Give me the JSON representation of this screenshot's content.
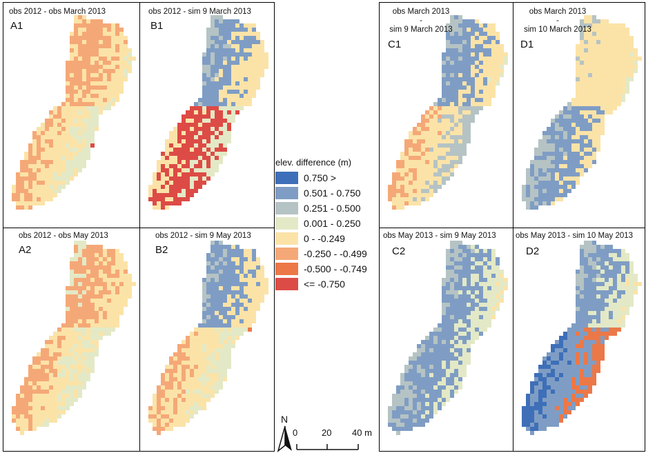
{
  "legend": {
    "title": "elev. difference (m)",
    "classes": [
      {
        "label": "0.750 >",
        "color": "#3e6fb8"
      },
      {
        "label": "0.501 - 0.750",
        "color": "#7f9dc4"
      },
      {
        "label": "0.251 - 0.500",
        "color": "#b5c3c4"
      },
      {
        "label": "0.001 - 0.250",
        "color": "#e3e9c6"
      },
      {
        "label": "0 - -0.249",
        "color": "#fbe3a8"
      },
      {
        "label": "-0.250 - -0.499",
        "color": "#f5a877"
      },
      {
        "label": "-0.500 - -0.749",
        "color": "#ec7848"
      },
      {
        "label": "<= -0.750",
        "color": "#dd4b46"
      }
    ]
  },
  "panels": {
    "A1": {
      "title": "obs 2012 - obs March 2013",
      "label": "A1"
    },
    "B1": {
      "title": "obs 2012 - sim 9 March 2013",
      "label": "B1"
    },
    "C1": {
      "title_line1": "obs March 2013",
      "title_line2": "-",
      "title_line3": "sim 9 March 2013",
      "label": "C1"
    },
    "D1": {
      "title_line1": "obs March 2013",
      "title_line2": "-",
      "title_line3": "sim 10 March 2013",
      "label": "D1"
    },
    "A2": {
      "title": "obs 2012 - obs May 2013",
      "label": "A2"
    },
    "B2": {
      "title": "obs 2012 - sim 9 May 2013",
      "label": "B2"
    },
    "C2": {
      "title": "obs May 2013 - sim 9 May 2013",
      "label": "C2"
    },
    "D2": {
      "title": "obs May 2013 - sim 10 May 2013",
      "label": "D2"
    }
  },
  "north_arrow": {
    "label": "N"
  },
  "scalebar": {
    "ticks": [
      "0",
      "20",
      "40 m"
    ]
  }
}
